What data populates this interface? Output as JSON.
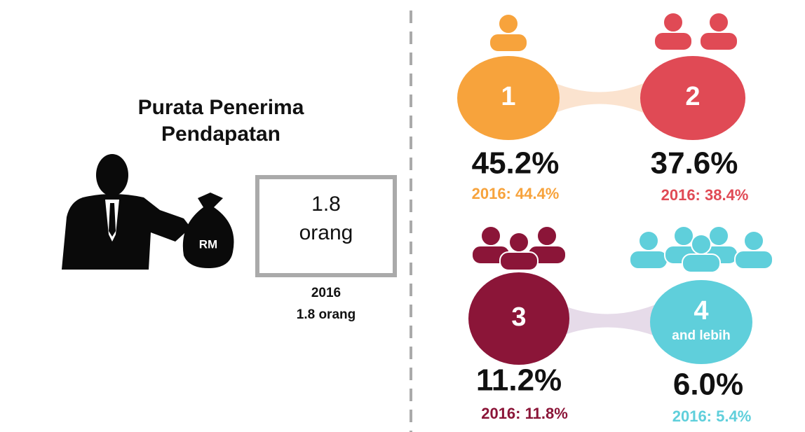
{
  "title": [
    "Purata Penerima",
    "Pendapatan"
  ],
  "icon_label": "RM",
  "average": {
    "value": "1.8",
    "unit": "orang"
  },
  "previous": {
    "year": "2016",
    "value": "1.8 orang"
  },
  "groups": [
    {
      "label": "1",
      "percent": "45.2%",
      "previous": "2016: 44.4%",
      "color": "#f7a33c"
    },
    {
      "label": "2",
      "percent": "37.6%",
      "previous": "2016: 38.4%",
      "color": "#e04a55"
    },
    {
      "label": "3",
      "percent": "11.2%",
      "previous": "2016: 11.8%",
      "color": "#8b1538"
    },
    {
      "label": "4",
      "sublabel": "and lebih",
      "percent": "6.0%",
      "previous": "2016: 5.4%",
      "color": "#5fcfdb"
    }
  ]
}
